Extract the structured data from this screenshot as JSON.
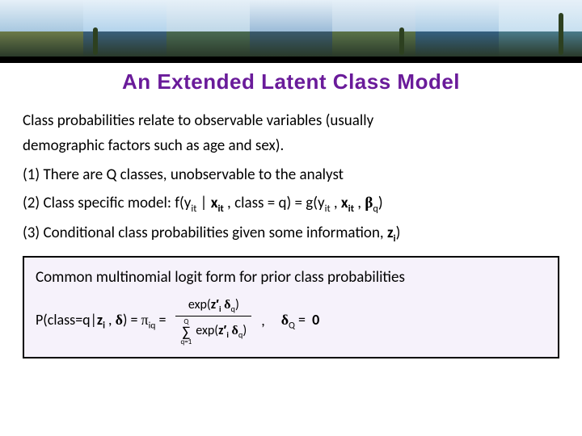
{
  "title": {
    "text": "An Extended Latent Class Model",
    "color": "#6a1b9a"
  },
  "banner": {
    "tiles": [
      {
        "sky": "#a8c8e0",
        "land": "#6b7a4a"
      },
      {
        "sky": "#b4d4ec",
        "land": "#3a5f7a"
      },
      {
        "sky": "#c0d8e8",
        "land": "#4a6a52"
      },
      {
        "sky": "#9cbcd8",
        "land": "#3a5a6c"
      },
      {
        "sky": "#b8d0e4",
        "land": "#5a7248"
      },
      {
        "sky": "#aecee6",
        "land": "#356080"
      },
      {
        "sky": "#c8e0f0",
        "land": "#4a7a8a"
      }
    ],
    "bar_color": "#000000"
  },
  "body": {
    "intro1": "Class probabilities relate to observable variables (usually",
    "intro2": "demographic factors such as age and sex).",
    "line1": "(1) There are Q classes, unobservable to the analyst",
    "line2_pre": "(2) Class specific model:   f(y",
    "line2_mid1": " | ",
    "x_it": "x",
    "sub_it": "it",
    "line2_mid2": " , class = q) = g(y",
    "line2_mid3": " , ",
    "line2_mid4": " , ",
    "beta": "β",
    "sub_q": "q",
    "line2_end": ")",
    "line3_pre": "(3) Conditional class probabilities given some information, ",
    "z_i": "z",
    "sub_i": "i",
    "line3_end": ")"
  },
  "box": {
    "background": "#f6f2fb",
    "title": "Common multinomial logit form for prior class probabilities",
    "lhs_pre": "P(class=q|",
    "lhs_mid": " , ",
    "delta": "δ",
    "lhs_close": ") = ",
    "pi": "π",
    "sub_iq": "iq",
    "equals": " = ",
    "num_pre": "exp(",
    "z_prime": "z′",
    "num_post": ")",
    "sum_top": "Q",
    "sum_bot": "q=1",
    "den_pre": "exp(",
    "den_post": ")",
    "comma": " ,",
    "tail_eq": " = ",
    "zero": "0",
    "sub_Q": "Q"
  }
}
